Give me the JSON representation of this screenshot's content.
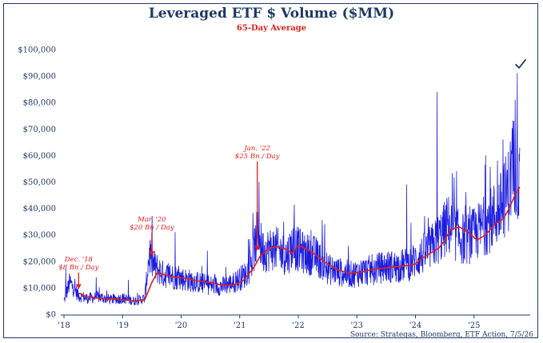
{
  "chart_data": {
    "type": "line",
    "title": "Leveraged ETF $ Volume ($MM)",
    "subtitle": "65-Day Average",
    "source": "Source: Strategas, Bloomberg, ETF Action, 7/5/26",
    "ylim": [
      0,
      100000
    ],
    "xlim": [
      2018.0,
      2025.85
    ],
    "y_ticks": [
      "$0",
      "$10,000",
      "$20,000",
      "$30,000",
      "$40,000",
      "$50,000",
      "$60,000",
      "$70,000",
      "$80,000",
      "$90,000",
      "$100,000"
    ],
    "x_ticks": [
      "'18",
      "'19",
      "'20",
      "'21",
      "'22",
      "'23",
      "'24",
      "'25"
    ],
    "grid": false,
    "colors": {
      "daily": "#1c1ce0",
      "average": "#e0201b",
      "frame": "#1f3864",
      "text": "#1f3864"
    },
    "series": [
      {
        "role": "daily",
        "x": [
          2018.0,
          2018.1,
          2018.25,
          2018.4,
          2018.6,
          2018.8,
          2019.0,
          2019.2,
          2019.38,
          2019.45,
          2019.55,
          2019.7,
          2019.9,
          2020.1,
          2020.3,
          2020.5,
          2020.7,
          2020.9,
          2021.1,
          2021.2,
          2021.3,
          2021.4,
          2021.6,
          2021.8,
          2021.9,
          2022.1,
          2022.3,
          2022.5,
          2022.7,
          2022.9,
          2023.1,
          2023.3,
          2023.5,
          2023.7,
          2023.9,
          2024.1,
          2024.3,
          2024.45,
          2024.55,
          2024.7,
          2024.85,
          2025.0,
          2025.15,
          2025.3,
          2025.45,
          2025.6,
          2025.65,
          2025.72,
          2025.78
        ],
        "y": [
          5000,
          12000,
          7000,
          6000,
          6500,
          5500,
          6000,
          5000,
          6000,
          22000,
          18000,
          15000,
          14000,
          13000,
          12000,
          11000,
          10500,
          12000,
          15000,
          19000,
          30000,
          24000,
          25000,
          22000,
          26000,
          23000,
          22000,
          17000,
          16000,
          15000,
          16000,
          17000,
          18000,
          18000,
          19000,
          22000,
          26000,
          30000,
          34000,
          30000,
          28000,
          30000,
          33000,
          36000,
          40000,
          48000,
          55000,
          58000,
          45000
        ]
      },
      {
        "name": "65-Day Average",
        "role": "average",
        "x": [
          2018.25,
          2018.4,
          2018.6,
          2018.8,
          2019.0,
          2019.2,
          2019.38,
          2019.5,
          2019.6,
          2019.7,
          2019.9,
          2020.1,
          2020.3,
          2020.5,
          2020.7,
          2020.9,
          2021.05,
          2021.15,
          2021.25,
          2021.35,
          2021.5,
          2021.65,
          2021.8,
          2021.9,
          2022.0,
          2022.2,
          2022.35,
          2022.5,
          2022.7,
          2022.9,
          2023.1,
          2023.3,
          2023.5,
          2023.7,
          2023.9,
          2024.0,
          2024.1,
          2024.25,
          2024.4,
          2024.5,
          2024.6,
          2024.75,
          2024.9,
          2025.05,
          2025.2,
          2025.35,
          2025.5,
          2025.6,
          2025.7,
          2025.78
        ],
        "y": [
          8000,
          6500,
          6000,
          5800,
          5500,
          5000,
          5500,
          12000,
          16000,
          15000,
          14000,
          13500,
          12500,
          12000,
          11000,
          11000,
          12500,
          15000,
          18000,
          22000,
          25000,
          25500,
          24500,
          23000,
          26000,
          24000,
          21500,
          19000,
          16500,
          15500,
          16000,
          17000,
          17500,
          18000,
          18500,
          19000,
          21000,
          23000,
          25000,
          28000,
          32000,
          33000,
          31000,
          28000,
          30000,
          34000,
          36000,
          40000,
          45000,
          48000
        ]
      }
    ],
    "spikes": [
      {
        "x": 2018.03,
        "y": 17000
      },
      {
        "x": 2018.55,
        "y": 14000
      },
      {
        "x": 2019.1,
        "y": 13000
      },
      {
        "x": 2019.47,
        "y": 27000
      },
      {
        "x": 2019.9,
        "y": 31000
      },
      {
        "x": 2020.45,
        "y": 24000
      },
      {
        "x": 2021.33,
        "y": 50000
      },
      {
        "x": 2021.75,
        "y": 35000
      },
      {
        "x": 2022.45,
        "y": 34000
      },
      {
        "x": 2023.85,
        "y": 49000
      },
      {
        "x": 2024.37,
        "y": 84000
      },
      {
        "x": 2024.7,
        "y": 54000
      },
      {
        "x": 2025.2,
        "y": 60000
      },
      {
        "x": 2025.4,
        "y": 58000
      },
      {
        "x": 2025.7,
        "y": 81000
      },
      {
        "x": 2025.74,
        "y": 91000
      },
      {
        "x": 2025.79,
        "y": 63000
      }
    ],
    "annotations": [
      {
        "line1": "Dec. '18",
        "line2": "$8 Bn / Day",
        "x": 2018.25,
        "y": 9500,
        "text_y": 20000
      },
      {
        "line1": "Mar. '20",
        "line2": "$20 Bn / Day",
        "x": 2019.5,
        "y": 22000,
        "text_y": 35000
      },
      {
        "line1": "Jan. '22",
        "line2": "$25 Bn / Day",
        "x": 2021.3,
        "y": 24000,
        "text_y": 62000
      }
    ],
    "checkmark": {
      "x": 2025.77,
      "y": 94000,
      "color": "#1f3864"
    }
  }
}
